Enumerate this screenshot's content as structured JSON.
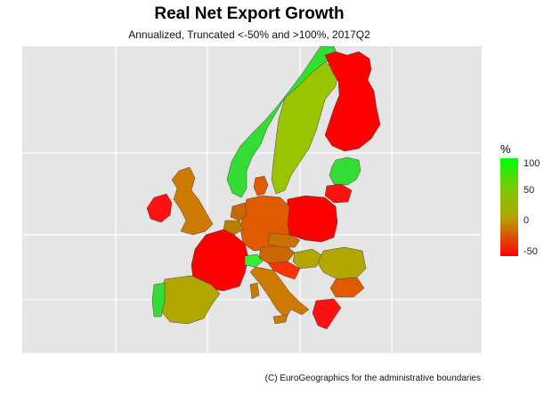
{
  "map": {
    "title": "Real Net Export Growth",
    "subtitle": "Annualized, Truncated <-50% and >100%, 2017Q2",
    "caption": "(C) EuroGeographics for the administrative boundaries",
    "legend": {
      "title": "%",
      "ticks": [
        "100",
        "50",
        "0",
        "-50"
      ],
      "color_scale": {
        "high": "#00ff00",
        "mid": "#b2a600",
        "low": "#ff0000"
      }
    },
    "regions": {
      "norway": "#33dd33",
      "sweden": "#99c400",
      "finland": "#ff0000",
      "estonia_latvia": "#33dd33",
      "lithuania": "#ff1111",
      "poland": "#ff0000",
      "germany": "#e05a00",
      "denmark": "#e05a00",
      "netherlands": "#cc6600",
      "belgium": "#bb7f00",
      "uk": "#cc7a00",
      "ireland": "#ff1111",
      "france": "#ff0000",
      "spain": "#b2a600",
      "portugal": "#33dd33",
      "italy": "#cc7a00",
      "switzerland": "#33ee33",
      "austria": "#cc6600",
      "czech": "#cc7000",
      "hungary": "#b2a600",
      "romania": "#b2a600",
      "bulgaria": "#e05a00",
      "greece": "#ff1111",
      "croatia_slovenia": "#ff3300"
    }
  }
}
